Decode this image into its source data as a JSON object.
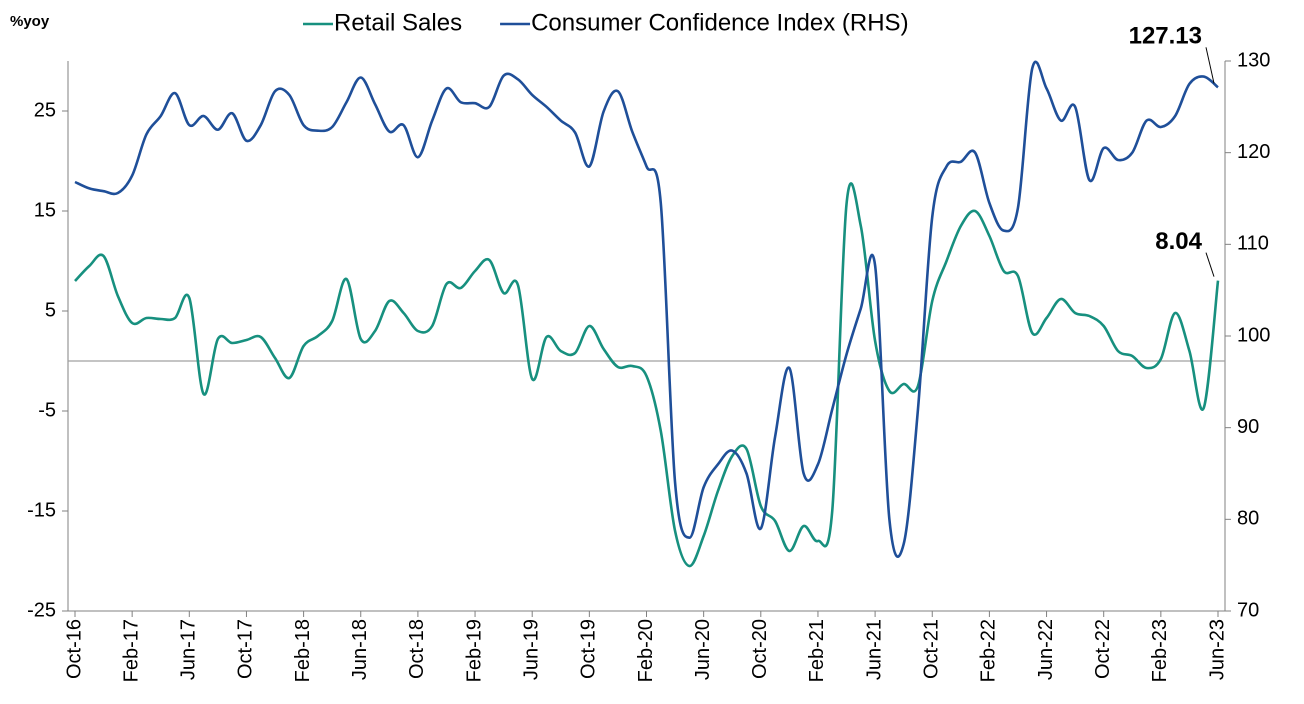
{
  "chart_data": {
    "type": "line",
    "y_label": "%yoy",
    "categories": [
      "Oct-16",
      null,
      null,
      null,
      "Feb-17",
      null,
      null,
      null,
      "Jun-17",
      null,
      null,
      null,
      "Oct-17",
      null,
      null,
      null,
      "Feb-18",
      null,
      null,
      null,
      "Jun-18",
      null,
      null,
      null,
      "Oct-18",
      null,
      null,
      null,
      "Feb-19",
      null,
      null,
      null,
      "Jun-19",
      null,
      null,
      null,
      "Oct-19",
      null,
      null,
      null,
      "Feb-20",
      null,
      null,
      null,
      "Jun-20",
      null,
      null,
      null,
      "Oct-20",
      null,
      null,
      null,
      "Feb-21",
      null,
      null,
      null,
      "Jun-21",
      null,
      null,
      null,
      "Oct-21",
      null,
      null,
      null,
      "Feb-22",
      null,
      null,
      null,
      "Jun-22",
      null,
      null,
      null,
      "Oct-22",
      null,
      null,
      null,
      "Feb-23",
      null,
      null,
      null,
      "Jun-23"
    ],
    "series": [
      {
        "name": "Retail Sales",
        "color": "#17907f",
        "values": [
          8,
          9.5,
          10.5,
          6.5,
          3.8,
          4.3,
          4.2,
          4.3,
          6.3,
          -3.3,
          2.2,
          1.8,
          2.1,
          2.4,
          0.3,
          -1.7,
          1.5,
          2.5,
          4,
          8.2,
          2.2,
          3,
          6,
          4.8,
          3,
          3.5,
          7.7,
          7.3,
          9,
          10.1,
          6.8,
          7.6,
          -1.8,
          2.4,
          1,
          0.8,
          3.5,
          1.2,
          -0.6,
          -0.5,
          -1.5,
          -7,
          -17,
          -20.5,
          -17.5,
          -13,
          -9.5,
          -8.8,
          -14.5,
          -16,
          -19,
          -16.5,
          -18,
          -15,
          15.7,
          13.5,
          2,
          -3,
          -2.3,
          -2.5,
          6,
          10,
          13.5,
          15,
          12.5,
          9,
          8.5,
          2.8,
          4.3,
          6.2,
          4.8,
          4.5,
          3.5,
          1,
          0.5,
          -0.7,
          0.2,
          4.8,
          1,
          -4.7,
          8.04
        ],
        "value_labels": [
          null,
          null,
          null,
          null,
          null,
          null,
          null,
          null,
          null,
          null,
          null,
          null,
          null,
          null,
          null,
          null,
          null,
          null,
          null,
          null,
          null,
          null,
          null,
          null,
          null,
          null,
          null,
          null,
          null,
          null,
          null,
          null,
          null,
          null,
          null,
          null,
          null,
          null,
          null,
          null,
          null,
          null,
          null,
          null,
          null,
          null,
          null,
          null,
          null,
          null,
          null,
          null,
          null,
          null,
          null,
          null,
          null,
          null,
          null,
          null,
          null,
          null,
          null,
          null,
          null,
          null,
          null,
          null,
          null,
          null,
          null,
          null,
          null,
          null,
          null,
          null,
          null,
          null,
          null,
          null,
          "8.04"
        ]
      },
      {
        "name": "Consumer Confidence Index (RHS)",
        "color": "#1f4f99",
        "axis": "y2",
        "values": [
          116.8,
          116.1,
          115.8,
          115.6,
          117.5,
          122,
          124,
          126.5,
          123,
          124,
          122.5,
          124.3,
          121.3,
          123,
          126.7,
          126.3,
          123,
          122.4,
          122.8,
          125.5,
          128.2,
          125.3,
          122.3,
          123,
          119.5,
          123.5,
          127,
          125.5,
          125.4,
          125,
          128.4,
          128,
          126.3,
          125,
          123.5,
          122.2,
          118.5,
          124.5,
          126.7,
          122.3,
          118.5,
          114.5,
          84,
          78,
          83.5,
          86,
          87.5,
          85,
          79,
          89,
          96.5,
          85,
          86,
          92,
          98,
          103,
          107.7,
          80,
          77.3,
          92,
          113,
          118.5,
          119,
          120,
          114.5,
          111.5,
          114,
          129.2,
          127,
          123.5,
          125,
          117,
          120.5,
          119.2,
          120,
          123.5,
          122.8,
          124,
          127.5,
          128.3,
          127.13
        ],
        "value_labels": [
          null,
          null,
          null,
          null,
          null,
          null,
          null,
          null,
          null,
          null,
          null,
          null,
          null,
          null,
          null,
          null,
          null,
          null,
          null,
          null,
          null,
          null,
          null,
          null,
          null,
          null,
          null,
          null,
          null,
          null,
          null,
          null,
          null,
          null,
          null,
          null,
          null,
          null,
          null,
          null,
          null,
          null,
          null,
          null,
          null,
          null,
          null,
          null,
          null,
          null,
          null,
          null,
          null,
          null,
          null,
          null,
          null,
          null,
          null,
          null,
          null,
          null,
          null,
          null,
          null,
          null,
          null,
          null,
          null,
          null,
          null,
          null,
          null,
          null,
          null,
          null,
          null,
          null,
          null,
          null,
          "127.13"
        ]
      }
    ],
    "ylim": [
      -25,
      30
    ],
    "yticks": [
      -25,
      -15,
      -5,
      5,
      15,
      25
    ],
    "y2lim": [
      70,
      130
    ],
    "y2ticks": [
      70,
      80,
      90,
      100,
      110,
      120,
      130
    ],
    "grid": false,
    "legend": "top"
  }
}
